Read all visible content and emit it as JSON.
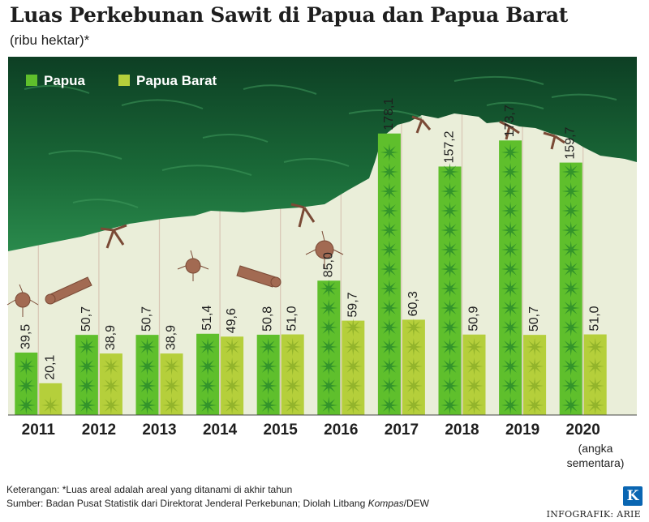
{
  "title": "Luas Perkebunan Sawit di Papua dan Papua Barat",
  "subtitle": "(ribu hektar)*",
  "chart_data": {
    "type": "bar",
    "categories": [
      "2011",
      "2012",
      "2013",
      "2014",
      "2015",
      "2016",
      "2017",
      "2018",
      "2019",
      "2020"
    ],
    "category_note": "(angka sementara)",
    "series": [
      {
        "name": "Papua",
        "color": "#5fbf2c",
        "values": [
          39.5,
          50.7,
          50.7,
          51.4,
          50.8,
          85.0,
          178.1,
          157.2,
          173.7,
          159.7
        ],
        "labels": [
          "39,5",
          "50,7",
          "50,7",
          "51,4",
          "50,8",
          "85,0",
          "178,1",
          "157,2",
          "173,7",
          "159,7"
        ]
      },
      {
        "name": "Papua Barat",
        "color": "#b5cf3b",
        "values": [
          20.1,
          38.9,
          38.9,
          49.6,
          51.0,
          59.7,
          60.3,
          50.9,
          50.7,
          51.0
        ],
        "labels": [
          "20,1",
          "38,9",
          "38,9",
          "49,6",
          "51,0",
          "59,7",
          "60,3",
          "50,9",
          "50,7",
          "51,0"
        ]
      }
    ],
    "ylim": [
      0,
      200
    ],
    "grid": false,
    "legend_position": "top-left"
  },
  "footnote": "Keterangan: *Luas areal adalah areal yang ditanami di akhir tahun",
  "source_prefix": "Sumber: Badan Pusat Statistik dari Direktorat Jenderal Perkebunan; Diolah Litbang ",
  "source_italic": "Kompas",
  "source_suffix": "/DEW",
  "credit": "INFOGRAFIK: ARIE",
  "logo_letter": "K",
  "colors": {
    "forest_dark": "#0f4a2a",
    "forest_mid": "#1f7a40",
    "background": "#eaeed9",
    "trunk": "#a26a52"
  }
}
